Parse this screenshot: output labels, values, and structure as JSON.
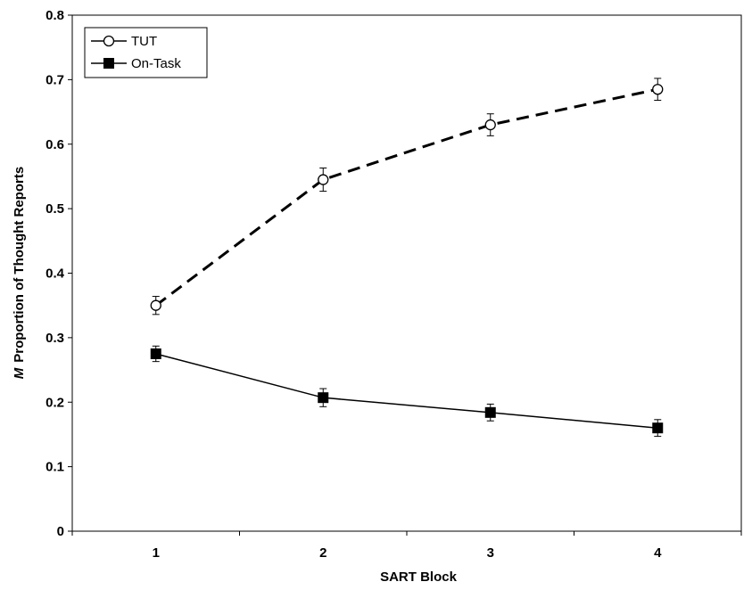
{
  "chart_data": {
    "type": "line",
    "xlabel": "SART Block",
    "ylabel_italic": "M",
    "ylabel": "Proportion of Thought Reports",
    "x": [
      1,
      2,
      3,
      4
    ],
    "x_tick_labels": [
      "1",
      "2",
      "3",
      "4"
    ],
    "xlim": [
      0.5,
      4.5
    ],
    "ylim": [
      0,
      0.8
    ],
    "y_ticks": [
      0,
      0.1,
      0.2,
      0.3,
      0.4,
      0.5,
      0.6,
      0.7,
      0.8
    ],
    "y_tick_labels": [
      "0",
      "0.1",
      "0.2",
      "0.3",
      "0.4",
      "0.5",
      "0.6",
      "0.7",
      "0.8"
    ],
    "grid": false,
    "legend_position": "top-left",
    "series": [
      {
        "name": "TUT",
        "values": [
          0.35,
          0.545,
          0.63,
          0.685
        ],
        "errors": [
          0.014,
          0.018,
          0.017,
          0.017
        ],
        "line_style": "dashed",
        "marker": "open-circle",
        "color": "#000000"
      },
      {
        "name": "On-Task",
        "values": [
          0.275,
          0.207,
          0.184,
          0.16
        ],
        "errors": [
          0.012,
          0.014,
          0.013,
          0.013
        ],
        "line_style": "solid",
        "marker": "filled-square",
        "color": "#000000"
      }
    ]
  }
}
